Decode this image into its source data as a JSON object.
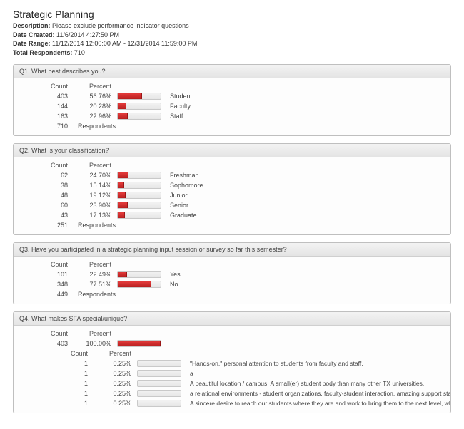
{
  "header": {
    "title": "Strategic Planning",
    "description_label": "Description:",
    "description_value": "Please exclude performance indicator questions",
    "date_created_label": "Date Created:",
    "date_created_value": "11/6/2014 4:27:50 PM",
    "date_range_label": "Date Range:",
    "date_range_value": "11/12/2014 12:00:00 AM - 12/31/2014 11:59:00 PM",
    "total_respondents_label": "Total Respondents:",
    "total_respondents_value": "710"
  },
  "labels": {
    "count": "Count",
    "percent": "Percent",
    "respondents": "Respondents"
  },
  "style": {
    "bar_fill_gradient_top": "#e43c3c",
    "bar_fill_gradient_bottom": "#b81f1f",
    "bar_track_border": "#c9c9c9",
    "header_gradient_top": "#f3f3f3",
    "header_gradient_bottom": "#e4e4e4",
    "block_border": "#bfbfbf"
  },
  "questions": [
    {
      "title": "Q1. What best describes you?",
      "rows": [
        {
          "count": "403",
          "percent": "56.76%",
          "pct": 56.76,
          "label": "Student"
        },
        {
          "count": "144",
          "percent": "20.28%",
          "pct": 20.28,
          "label": "Faculty"
        },
        {
          "count": "163",
          "percent": "22.96%",
          "pct": 22.96,
          "label": "Staff"
        }
      ],
      "respondents": "710"
    },
    {
      "title": "Q2. What is your classification?",
      "rows": [
        {
          "count": "62",
          "percent": "24.70%",
          "pct": 24.7,
          "label": "Freshman"
        },
        {
          "count": "38",
          "percent": "15.14%",
          "pct": 15.14,
          "label": "Sophomore"
        },
        {
          "count": "48",
          "percent": "19.12%",
          "pct": 19.12,
          "label": "Junior"
        },
        {
          "count": "60",
          "percent": "23.90%",
          "pct": 23.9,
          "label": "Senior"
        },
        {
          "count": "43",
          "percent": "17.13%",
          "pct": 17.13,
          "label": "Graduate"
        }
      ],
      "respondents": "251"
    },
    {
      "title": "Q3. Have you participated in a strategic planning input session or survey so far this semester?",
      "rows": [
        {
          "count": "101",
          "percent": "22.49%",
          "pct": 22.49,
          "label": "Yes"
        },
        {
          "count": "348",
          "percent": "77.51%",
          "pct": 77.51,
          "label": "No"
        }
      ],
      "respondents": "449"
    },
    {
      "title": "Q4. What makes SFA special/unique?",
      "rows": [
        {
          "count": "403",
          "percent": "100.00%",
          "pct": 100.0,
          "label": ""
        }
      ],
      "sub": {
        "rows": [
          {
            "count": "1",
            "percent": "0.25%",
            "pct": 0.25,
            "label": "\"Hands-on,\" personal attention to students from faculty and staff."
          },
          {
            "count": "1",
            "percent": "0.25%",
            "pct": 0.25,
            "label": "a"
          },
          {
            "count": "1",
            "percent": "0.25%",
            "pct": 0.25,
            "label": "A beautiful location / campus. A small(er) student body than many other TX universities."
          },
          {
            "count": "1",
            "percent": "0.25%",
            "pct": 0.25,
            "label": "a relational environments - student organizations, faculty-student interaction, amazing support staff"
          },
          {
            "count": "1",
            "percent": "0.25%",
            "pct": 0.25,
            "label": "A sincere desire to reach our students where they are and work to bring them to the next level, whatever that might be . . . A commitment to our"
          }
        ]
      }
    }
  ]
}
